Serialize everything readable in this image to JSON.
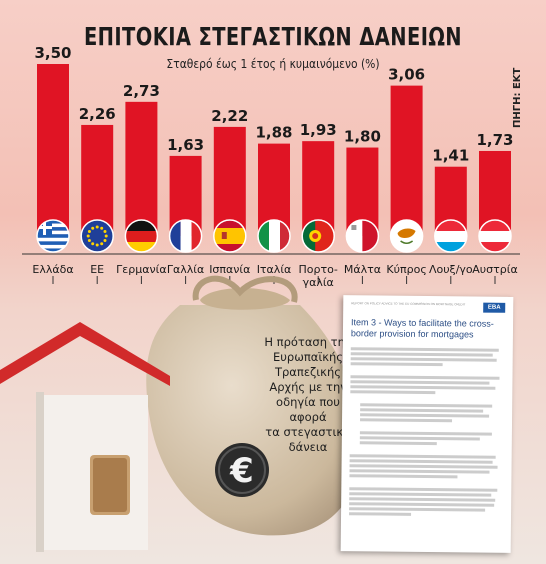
{
  "header": {
    "title": "ΕΠΙΤΟΚΙΑ ΣΤΕΓΑΣΤΙΚΩΝ ΔΑΝΕΙΩΝ",
    "subtitle": "Σταθερό έως 1 έτος ή κυμαινόμενο (%)",
    "source": "ΠΗΓΗ: ΕΚΤ"
  },
  "chart_data": {
    "type": "bar",
    "title": "ΕΠΙΤΟΚΙΑ ΣΤΕΓΑΣΤΙΚΩΝ ΔΑΝΕΙΩΝ",
    "subtitle": "Σταθερό έως 1 έτος ή κυμαινόμενο (%)",
    "categories": [
      "Ελλάδα",
      "ΕΕ",
      "Γερμανία",
      "Γαλλία",
      "Ισπανία",
      "Ιταλία",
      "Πορτο-γαλία",
      "Μάλτα",
      "Κύπρος",
      "Λουξ/γο",
      "Αυστρία"
    ],
    "category_lines": [
      [
        "Ελλάδα"
      ],
      [
        "ΕΕ"
      ],
      [
        "Γερμανία"
      ],
      [
        "Γαλλία"
      ],
      [
        "Ισπανία"
      ],
      [
        "Ιταλία"
      ],
      [
        "Πορτο-",
        "γαλία"
      ],
      [
        "Μάλτα"
      ],
      [
        "Κύπρος"
      ],
      [
        "Λουξ/γο"
      ],
      [
        "Αυστρία"
      ]
    ],
    "value_labels": [
      "3,50",
      "2,26",
      "2,73",
      "1,63",
      "2,22",
      "1,88",
      "1,93",
      "1,80",
      "3,06",
      "1,41",
      "1,73"
    ],
    "values": [
      3.5,
      2.26,
      2.73,
      1.63,
      2.22,
      1.88,
      1.93,
      1.8,
      3.06,
      1.41,
      1.73
    ],
    "flags": [
      "greece-flag",
      "eu-flag",
      "germany-flag",
      "france-flag",
      "spain-flag",
      "italy-flag",
      "portugal-flag",
      "malta-flag",
      "cyprus-flag",
      "luxembourg-flag",
      "austria-flag"
    ],
    "ylim": [
      0,
      3.5
    ],
    "bar_color": "#e01424",
    "grid": false
  },
  "caption": {
    "lines": [
      "Η πρόταση της",
      "Ευρωπαϊκής",
      "Τραπεζικής",
      "Αρχής με την",
      "οδηγία που",
      "αφορά",
      "τα στεγαστικά",
      "δάνεια"
    ]
  },
  "document": {
    "header": "REPORT ON POLICY ADVICE TO THE EU COMMISSION ON MORTGAGE CREDIT",
    "logo": "EBA",
    "title": "Item 3 - Ways to facilitate the cross-border provision for mortgages"
  },
  "icons": {
    "money_bag": "money-bag-icon",
    "euro": "euro-icon",
    "house": "house-icon"
  }
}
